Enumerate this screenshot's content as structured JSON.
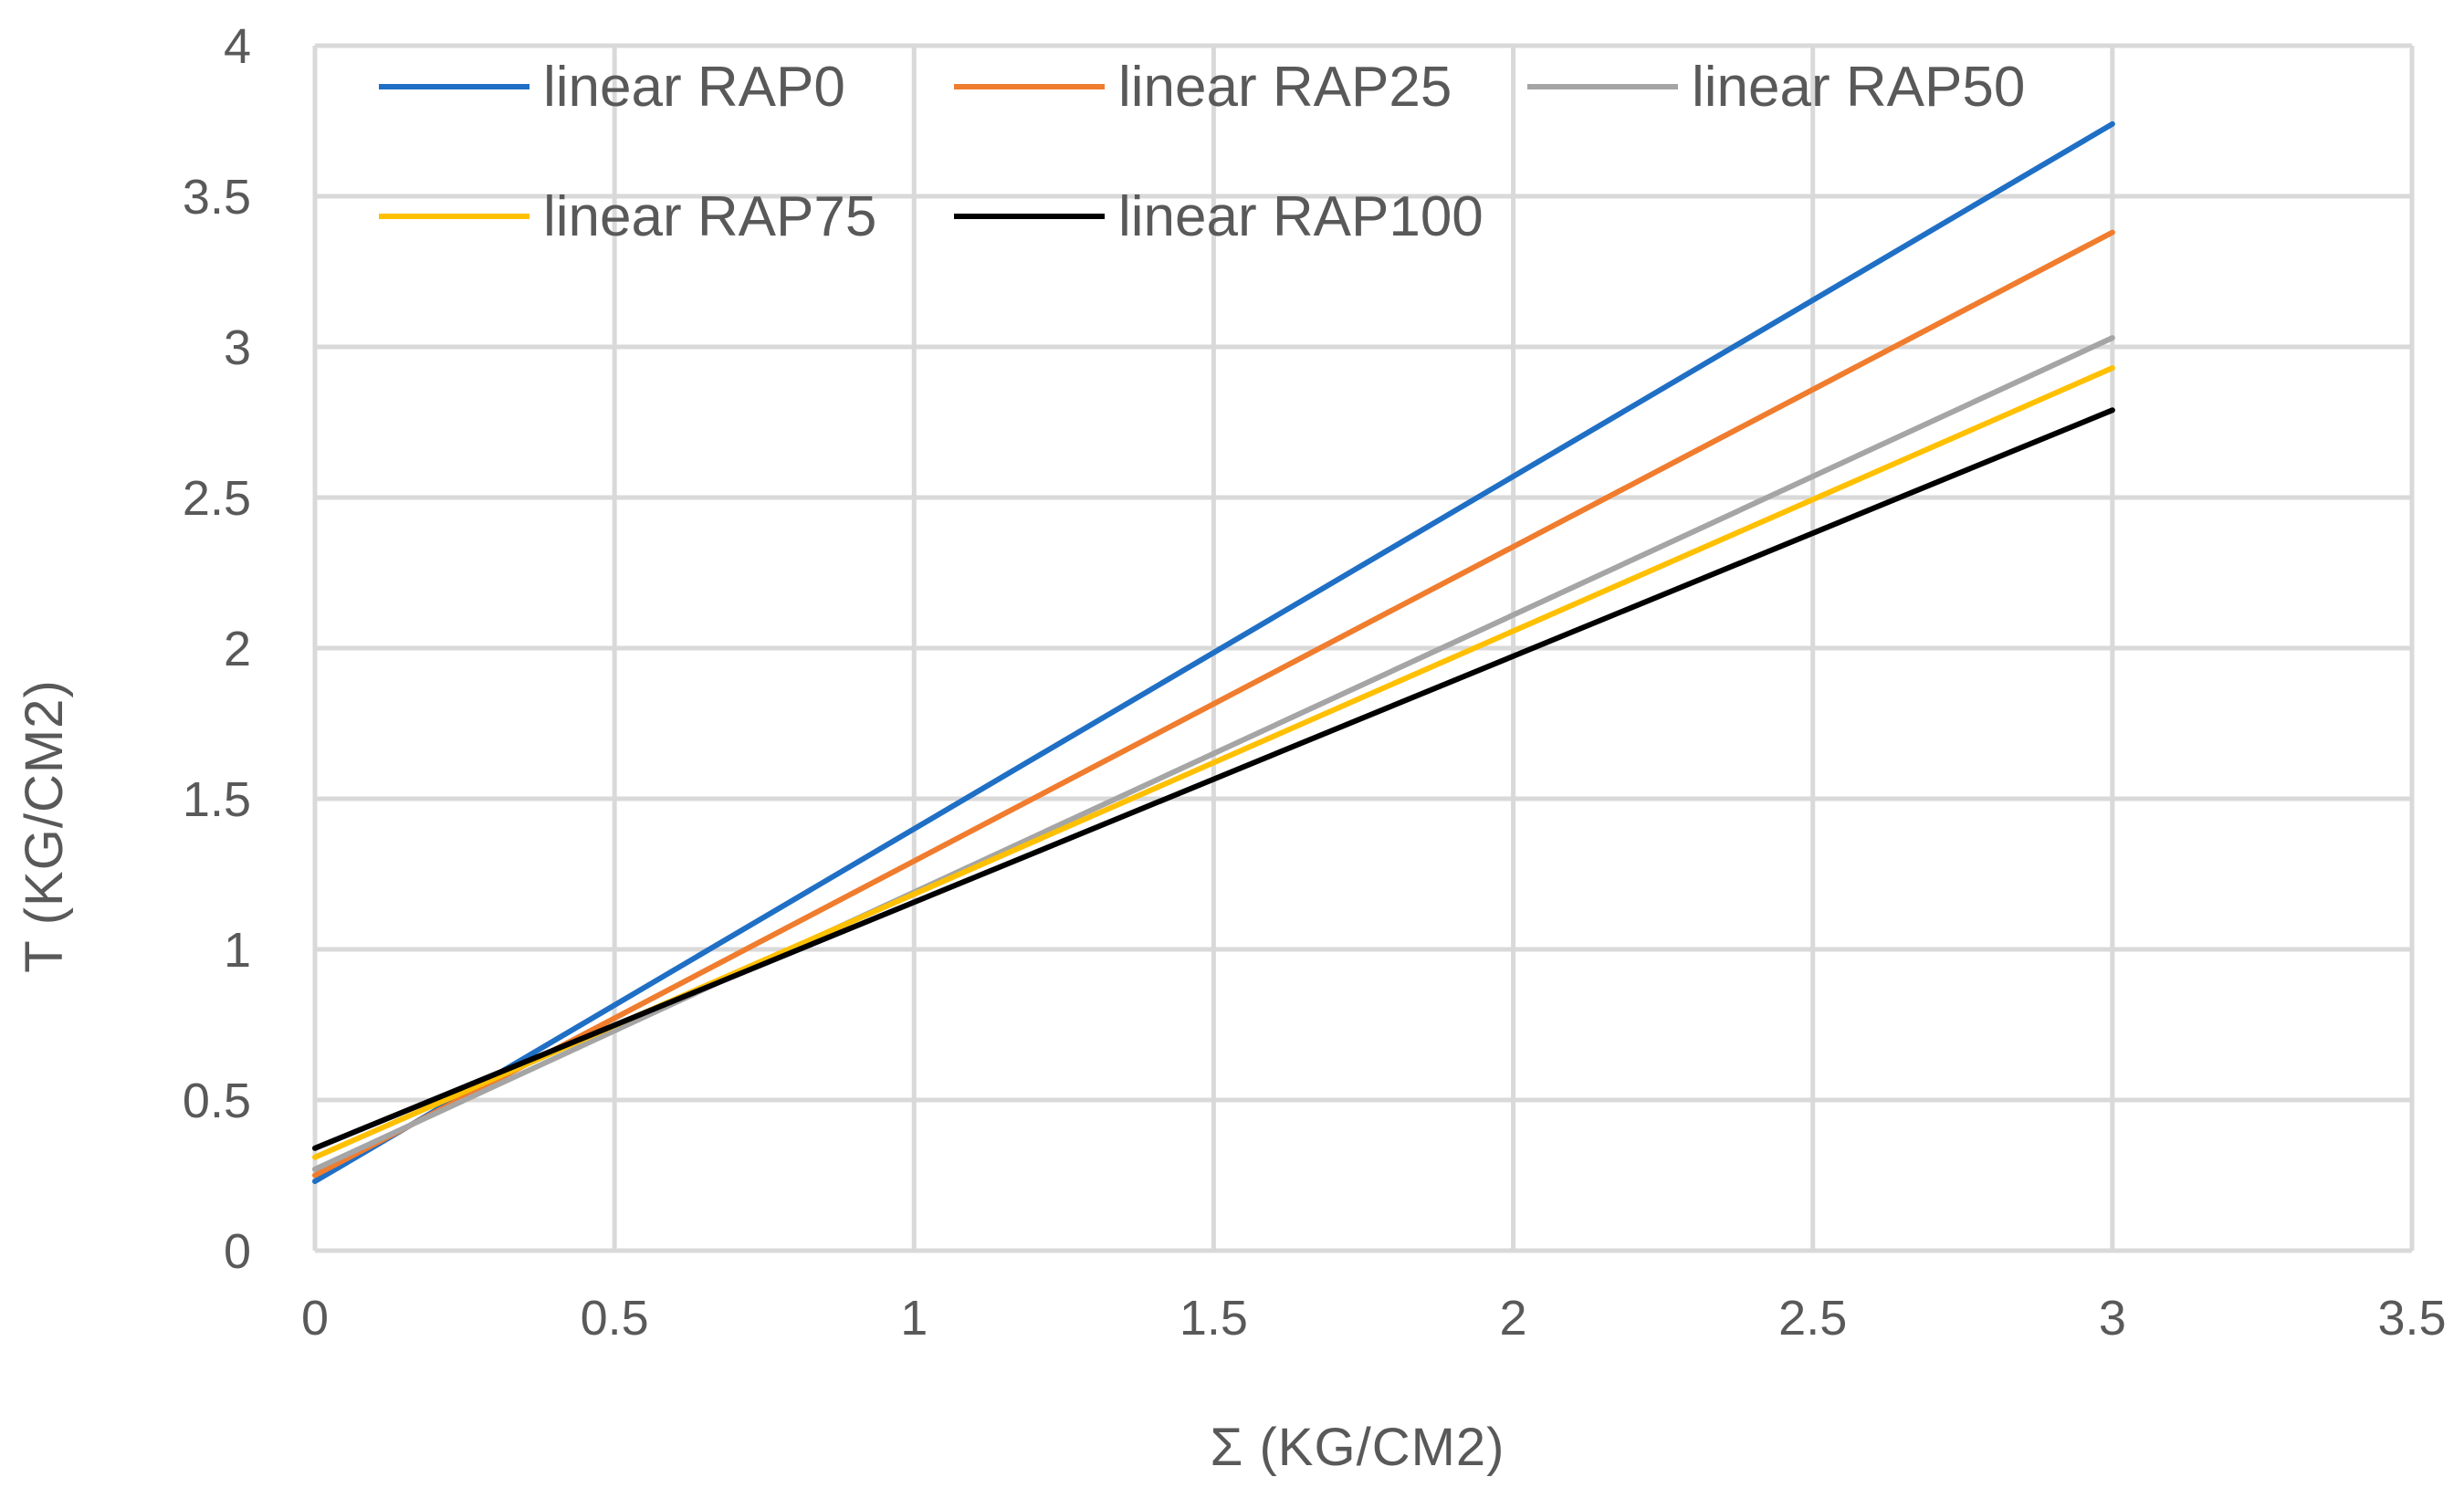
{
  "chart_data": {
    "type": "line",
    "title": "",
    "xlabel": "Σ (KG/CM2)",
    "ylabel": "Τ (KG/CM2)",
    "xlim": [
      0,
      3.5
    ],
    "ylim": [
      0,
      4
    ],
    "x_ticks": [
      "0",
      "0.5",
      "1",
      "1.5",
      "2",
      "2.5",
      "3",
      "3.5"
    ],
    "y_ticks": [
      "0",
      "0.5",
      "1",
      "1.5",
      "2",
      "2.5",
      "3",
      "3.5",
      "4"
    ],
    "grid": true,
    "legend_position": "top",
    "series": [
      {
        "name": "linear RAP0",
        "color": "#1f6fc5",
        "x": [
          0,
          3
        ],
        "y": [
          0.23,
          3.74
        ]
      },
      {
        "name": "linear RAP25",
        "color": "#f07c2e",
        "x": [
          0,
          3
        ],
        "y": [
          0.25,
          3.38
        ]
      },
      {
        "name": "linear RAP50",
        "color": "#a5a5a5",
        "x": [
          0,
          3
        ],
        "y": [
          0.27,
          3.03
        ]
      },
      {
        "name": "linear RAP75",
        "color": "#ffc000",
        "x": [
          0,
          3
        ],
        "y": [
          0.31,
          2.93
        ]
      },
      {
        "name": "linear RAP100",
        "color": "#000000",
        "x": [
          0,
          3
        ],
        "y": [
          0.34,
          2.79
        ]
      }
    ]
  }
}
